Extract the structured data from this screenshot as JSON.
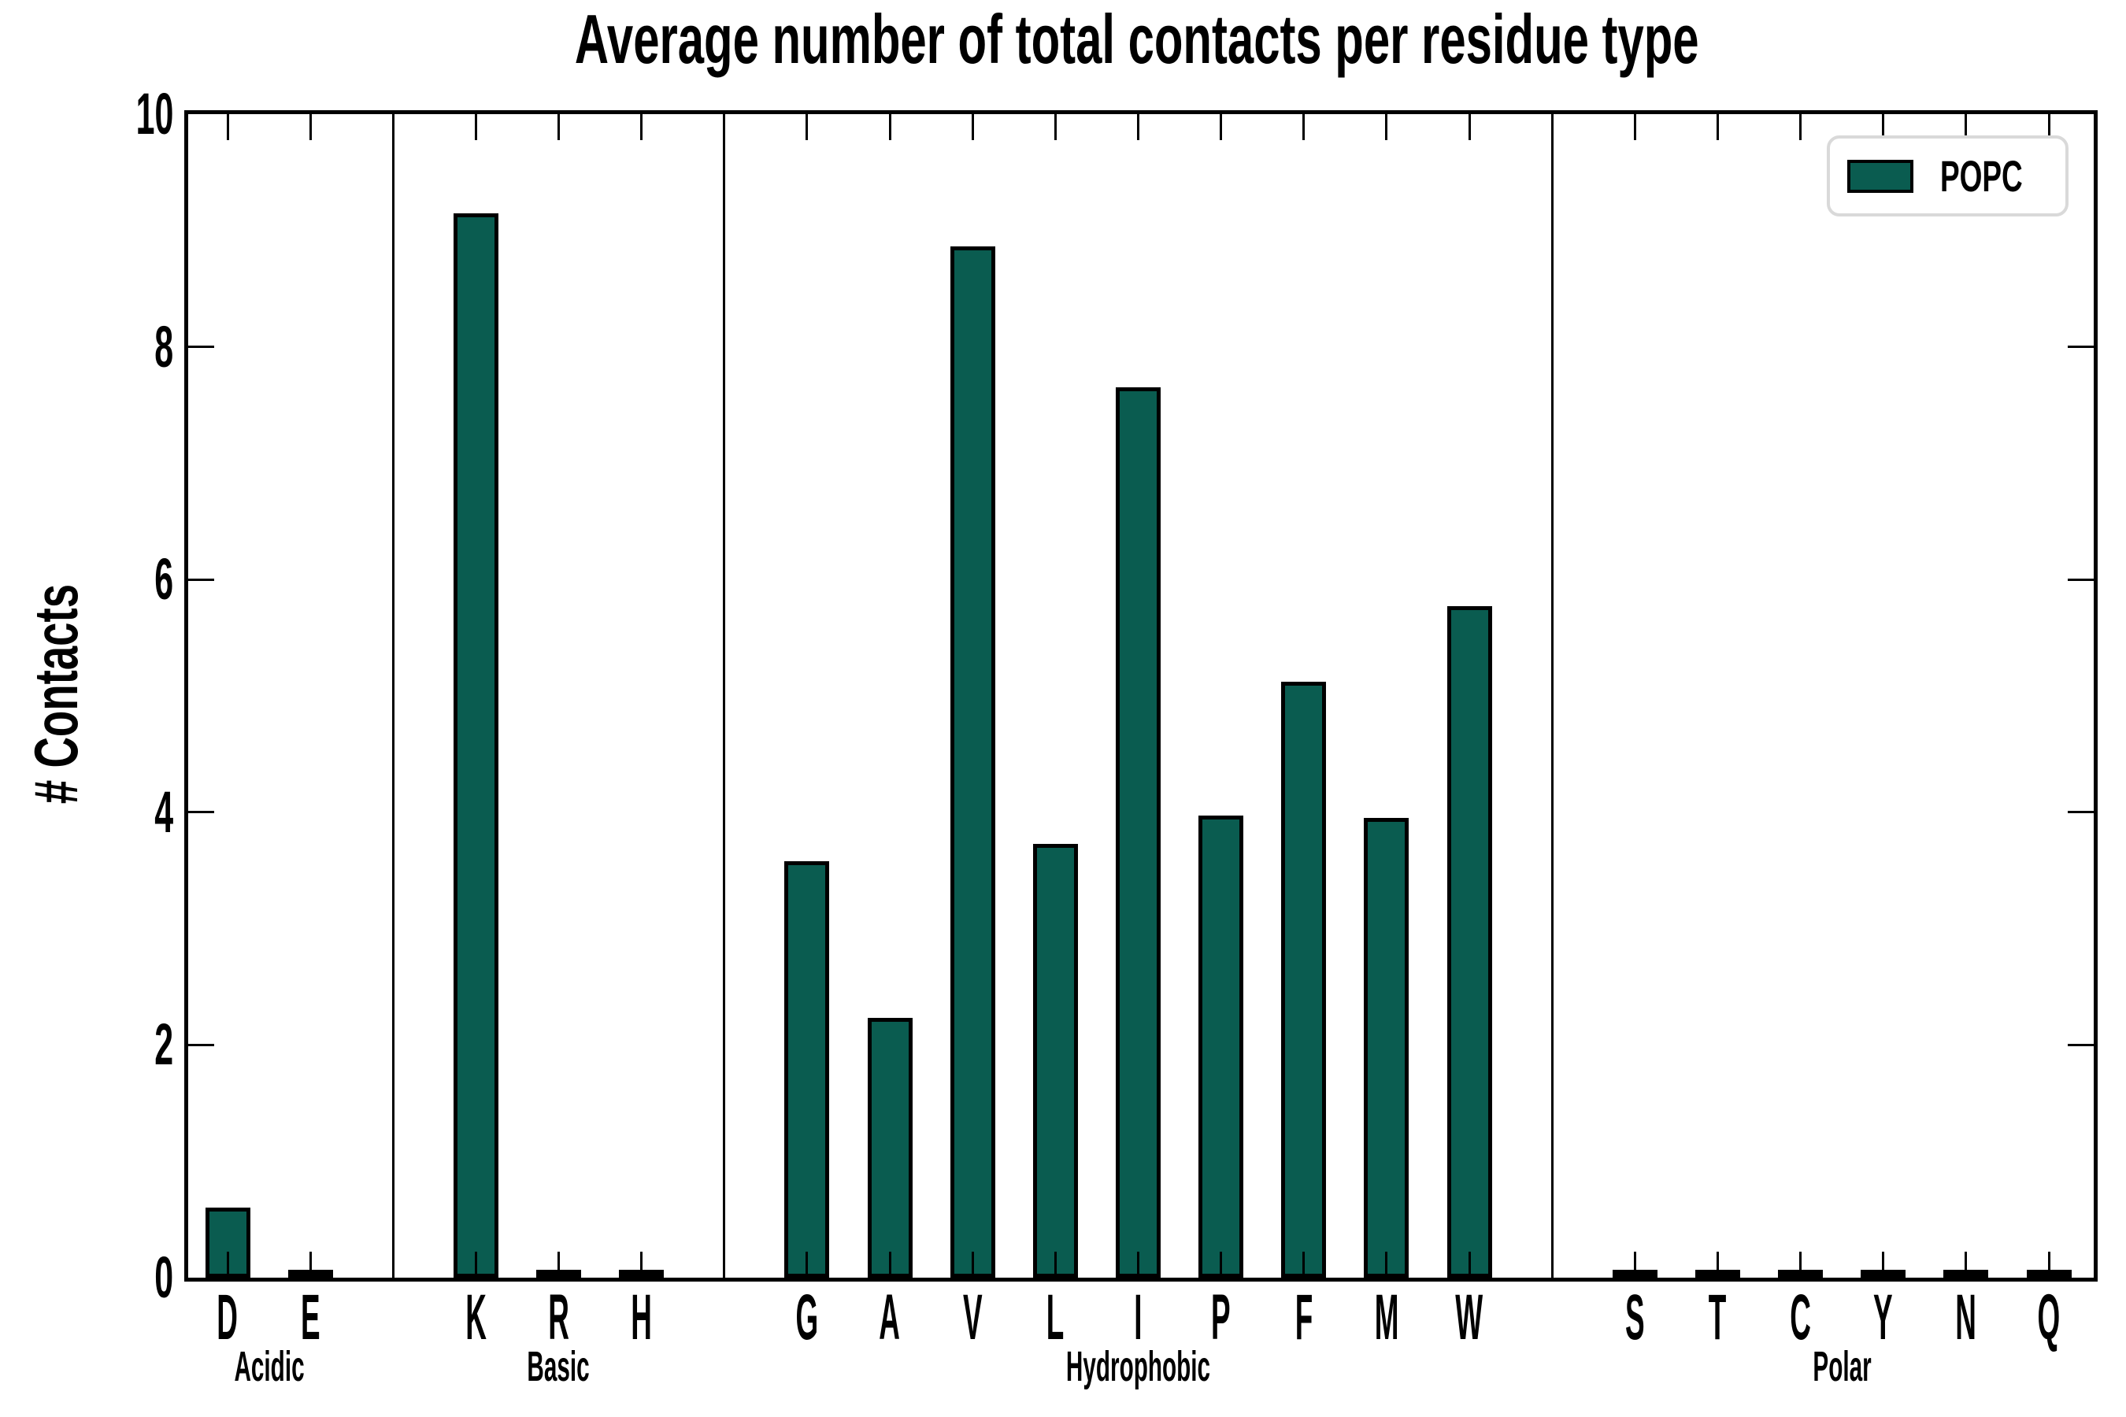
{
  "title": "Average number of total contacts per residue type",
  "y_axis": {
    "label": "# Contacts",
    "ticks": [
      0,
      2,
      4,
      6,
      8,
      10
    ],
    "range": [
      0,
      10
    ]
  },
  "legend": {
    "label": "POPC",
    "position": "upper right"
  },
  "colors": {
    "bar_fill": "#0a5c50",
    "bar_edge": "#000000",
    "axes": "#000000",
    "legend_border": "#d9d9d9",
    "background": "#ffffff"
  },
  "chart_data": {
    "type": "bar",
    "title": "Average number of total contacts per residue type",
    "xlabel": "",
    "ylabel": "# Contacts",
    "ylim": [
      0,
      10
    ],
    "yticks": [
      0,
      2,
      4,
      6,
      8,
      10
    ],
    "grid": false,
    "tick_direction": "in",
    "legend_position": "upper right",
    "legend": [
      {
        "name": "POPC",
        "color": "#0a5c50"
      }
    ],
    "categories": [
      "D",
      "E",
      "K",
      "R",
      "H",
      "G",
      "A",
      "V",
      "L",
      "I",
      "P",
      "F",
      "M",
      "W",
      "S",
      "T",
      "C",
      "Y",
      "N",
      "Q"
    ],
    "series": [
      {
        "name": "POPC",
        "values": [
          0.6,
          0.02,
          9.15,
          0.02,
          0.02,
          3.58,
          2.23,
          8.86,
          3.73,
          7.65,
          3.97,
          5.12,
          3.95,
          5.77,
          0.02,
          0.02,
          0.02,
          0.02,
          0.02,
          0.02
        ]
      }
    ],
    "groups": [
      {
        "label": "Acidic",
        "categories": [
          "D",
          "E"
        ],
        "values": [
          0.6,
          0.02
        ]
      },
      {
        "label": "Basic",
        "categories": [
          "K",
          "R",
          "H"
        ],
        "values": [
          9.15,
          0.02,
          0.02
        ]
      },
      {
        "label": "Hydrophobic",
        "categories": [
          "G",
          "A",
          "V",
          "L",
          "I",
          "P",
          "F",
          "M",
          "W"
        ],
        "values": [
          3.58,
          2.23,
          8.86,
          3.73,
          7.65,
          3.97,
          5.12,
          3.95,
          5.77
        ]
      },
      {
        "label": "Polar",
        "categories": [
          "S",
          "T",
          "C",
          "Y",
          "N",
          "Q"
        ],
        "values": [
          0.02,
          0.02,
          0.02,
          0.02,
          0.02,
          0.02
        ]
      }
    ]
  }
}
